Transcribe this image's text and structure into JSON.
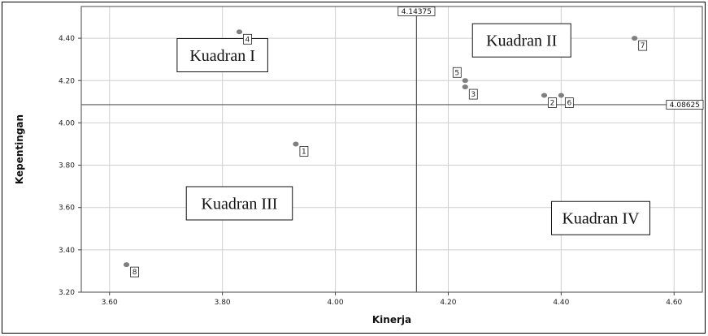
{
  "chart_data": {
    "type": "scatter",
    "xlabel": "Kinerja",
    "ylabel": "Kepentingan",
    "xlim": [
      3.55,
      4.65
    ],
    "ylim": [
      3.2,
      4.55
    ],
    "x_ticks": [
      "3.60",
      "3.80",
      "4.00",
      "4.20",
      "4.40",
      "4.60"
    ],
    "y_ticks": [
      "3.20",
      "3.40",
      "3.60",
      "3.80",
      "4.00",
      "4.20",
      "4.40"
    ],
    "grid": true,
    "points": [
      {
        "label": "1",
        "x": 3.93,
        "y": 3.9
      },
      {
        "label": "2",
        "x": 4.37,
        "y": 4.13
      },
      {
        "label": "3",
        "x": 4.23,
        "y": 4.17
      },
      {
        "label": "4",
        "x": 3.83,
        "y": 4.43
      },
      {
        "label": "5",
        "x": 4.23,
        "y": 4.2
      },
      {
        "label": "6",
        "x": 4.4,
        "y": 4.13
      },
      {
        "label": "7",
        "x": 4.53,
        "y": 4.4
      },
      {
        "label": "8",
        "x": 3.63,
        "y": 3.33
      }
    ],
    "ref_x": {
      "value": 4.14375,
      "label": "4.14375"
    },
    "ref_y": {
      "value": 4.08625,
      "label": "4.08625"
    },
    "quadrants": [
      {
        "label": "Kuadran I",
        "x": 3.8,
        "y": 4.32
      },
      {
        "label": "Kuadran II",
        "x": 4.33,
        "y": 4.39
      },
      {
        "label": "Kuadran III",
        "x": 3.83,
        "y": 3.62
      },
      {
        "label": "Kuadran IV",
        "x": 4.47,
        "y": 3.55
      }
    ],
    "colors": {
      "point": "#7f7f7f",
      "grid": "#cfcfcf",
      "ref_line": "#555555"
    }
  }
}
